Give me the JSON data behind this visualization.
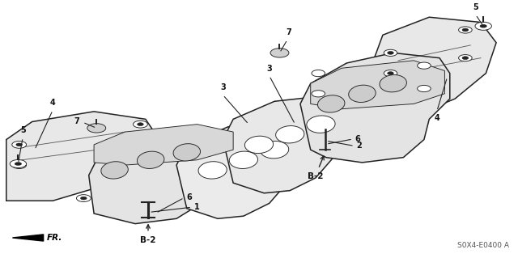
{
  "background_color": "#ffffff",
  "diagram_code": "S0X4-E0400 A",
  "line_color": "#222222",
  "label_color": "#111111",
  "fig_width": 6.4,
  "fig_height": 3.19
}
